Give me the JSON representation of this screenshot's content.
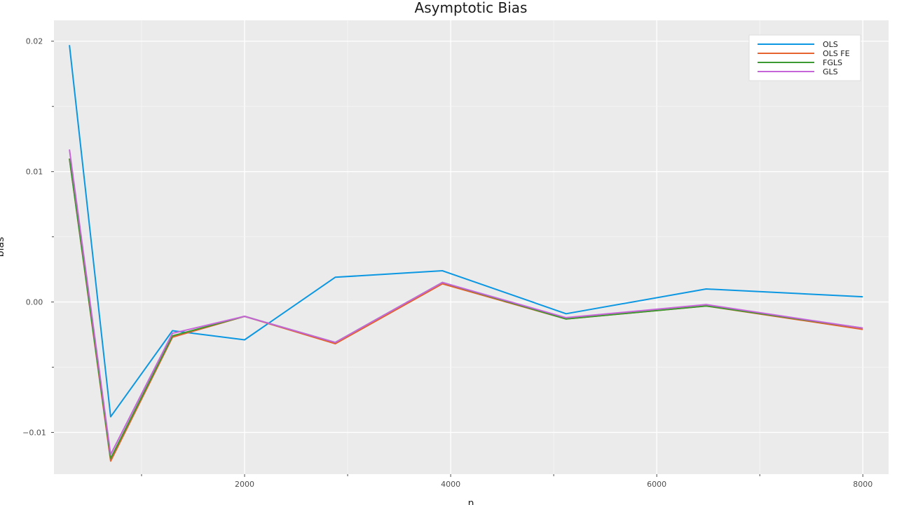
{
  "chart_data": {
    "type": "line",
    "title": "Asymptotic Bias",
    "xlabel": "n",
    "ylabel": "bias",
    "xlim": [
      150,
      8250
    ],
    "ylim": [
      -0.0132,
      0.0216
    ],
    "x_ticks": [
      2000,
      4000,
      6000,
      8000
    ],
    "x_tick_labels": [
      "2000",
      "4000",
      "6000",
      "8000"
    ],
    "x_minor_ticks": [
      1000,
      3000,
      5000,
      7000
    ],
    "y_ticks": [
      0.02,
      0.01,
      0.0,
      -0.01
    ],
    "y_tick_labels": [
      "0.02",
      "0.01",
      "0.00",
      "−0.01"
    ],
    "y_minor_ticks": [
      0.015,
      0.005,
      -0.005
    ],
    "grid": true,
    "legend_position": "top-right",
    "x": [
      300,
      700,
      1300,
      2000,
      2880,
      3920,
      5120,
      6480,
      8000
    ],
    "series": [
      {
        "name": "OLS",
        "color": "#0b97e1",
        "values": [
          0.0197,
          -0.0088,
          -0.0022,
          -0.0029,
          0.0019,
          0.0024,
          -0.0009,
          0.001,
          0.0004
        ]
      },
      {
        "name": "OLS FE",
        "color": "#e6622e",
        "values": [
          0.011,
          -0.0122,
          -0.0027,
          -0.0011,
          -0.0032,
          0.0014,
          -0.0013,
          -0.0003,
          -0.0021
        ]
      },
      {
        "name": "FGLS",
        "color": "#3b9a31",
        "values": [
          0.011,
          -0.012,
          -0.0026,
          -0.0011,
          -0.0031,
          0.0015,
          -0.0013,
          -0.0003,
          -0.002
        ]
      },
      {
        "name": "GLS",
        "color": "#c665d8",
        "values": [
          0.0117,
          -0.0117,
          -0.0024,
          -0.0011,
          -0.0031,
          0.0015,
          -0.0012,
          -0.0002,
          -0.002
        ]
      }
    ]
  }
}
